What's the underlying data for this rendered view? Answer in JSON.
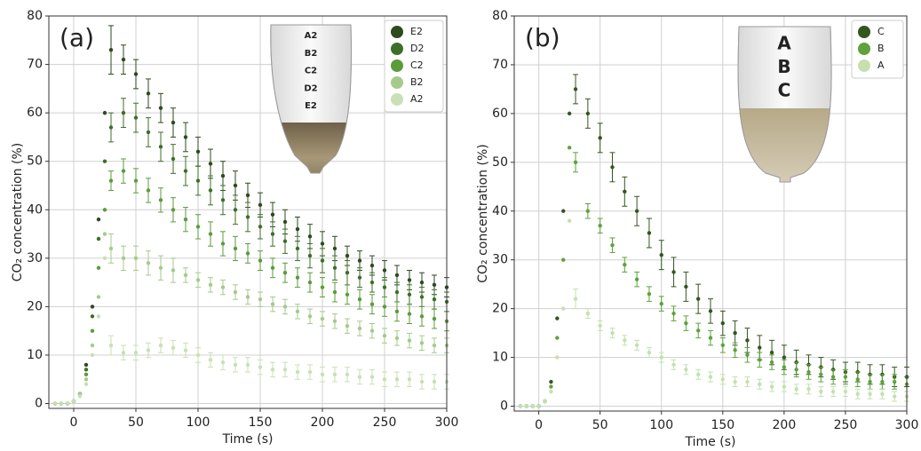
{
  "chart_data": [
    {
      "type": "scatter",
      "panel_label": "(a)",
      "x_label": "Time (s)",
      "y_label": "CO₂ concentration (%)",
      "xlim": [
        -20,
        300
      ],
      "xticks": [
        0,
        50,
        100,
        150,
        200,
        250,
        300
      ],
      "ylim": [
        -1,
        80
      ],
      "yticks": [
        0,
        10,
        20,
        30,
        40,
        50,
        60,
        70,
        80
      ],
      "grid": true,
      "legend": "upper right",
      "glass_labels": [
        "A2",
        "B2",
        "C2",
        "D2",
        "E2"
      ],
      "x": [
        -15,
        -10,
        -5,
        0,
        5,
        10,
        15,
        20,
        25,
        30,
        40,
        50,
        60,
        70,
        80,
        90,
        100,
        110,
        120,
        130,
        140,
        150,
        160,
        170,
        180,
        190,
        200,
        210,
        220,
        230,
        240,
        250,
        260,
        270,
        280,
        290,
        300
      ],
      "series": [
        {
          "name": "E2",
          "color": "#2e4a1f",
          "values": [
            0,
            0,
            0,
            0.5,
            2,
            8,
            20,
            38,
            60,
            73,
            71,
            68,
            64,
            61,
            58,
            55,
            52,
            49.5,
            47,
            45,
            43,
            41,
            39,
            37.5,
            36,
            34.5,
            33,
            32,
            30.5,
            29.5,
            28.5,
            27.5,
            26.5,
            25.5,
            25,
            24.5,
            24
          ],
          "errors": [
            null,
            null,
            null,
            null,
            null,
            null,
            null,
            null,
            null,
            5,
            3,
            3,
            3,
            3,
            3,
            3,
            3,
            3,
            3,
            3,
            2.5,
            2.5,
            2.5,
            2.5,
            2.5,
            2.5,
            2.5,
            2.5,
            2,
            2,
            2,
            2,
            2,
            2,
            2,
            2,
            2
          ]
        },
        {
          "name": "D2",
          "color": "#3f6e2a",
          "values": [
            0,
            0,
            0,
            0.5,
            2,
            7,
            18,
            34,
            50,
            57,
            60,
            59,
            56,
            53,
            50.5,
            48,
            46,
            44,
            42,
            40,
            38.5,
            36.5,
            35,
            33.5,
            32,
            30.5,
            29.5,
            28,
            27,
            26,
            25,
            24,
            23,
            22.5,
            22,
            21.5,
            21
          ],
          "errors": [
            null,
            null,
            null,
            null,
            null,
            null,
            null,
            null,
            null,
            3,
            3,
            3,
            3,
            3,
            3,
            3,
            3,
            3,
            3,
            3,
            3,
            2.5,
            2.5,
            2.5,
            2.5,
            2.5,
            2.5,
            2.5,
            2.5,
            2,
            2,
            2,
            2,
            2,
            2,
            2,
            2
          ]
        },
        {
          "name": "C2",
          "color": "#5c9b3b",
          "values": [
            0,
            0,
            0,
            0.5,
            2,
            6,
            15,
            28,
            40,
            46,
            48,
            46,
            44,
            42,
            40,
            38,
            36.5,
            35,
            33,
            32,
            31,
            29.5,
            28,
            27,
            26,
            25,
            24,
            23,
            22.5,
            21.5,
            20.5,
            20,
            19,
            18.5,
            18,
            17.5,
            17
          ],
          "errors": [
            null,
            null,
            null,
            null,
            null,
            null,
            null,
            null,
            null,
            2,
            2.5,
            2.5,
            2.5,
            2.5,
            2.5,
            2.5,
            2.5,
            2.5,
            2.5,
            2.5,
            2,
            2,
            2,
            2,
            2,
            2,
            2,
            2,
            2,
            2,
            2,
            2,
            2,
            2,
            2,
            2,
            2
          ]
        },
        {
          "name": "B2",
          "color": "#a5ca8c",
          "values": [
            0,
            0,
            0,
            0.5,
            2,
            5,
            12,
            22,
            35,
            32,
            30,
            30,
            29,
            28,
            27.5,
            26.5,
            25.5,
            24.5,
            24,
            23,
            22,
            21.5,
            20.5,
            20,
            19,
            18,
            17.5,
            17,
            16,
            15.5,
            15,
            14,
            13.5,
            13,
            12.5,
            12,
            12
          ],
          "errors": [
            null,
            null,
            null,
            null,
            null,
            null,
            null,
            null,
            null,
            3,
            2.5,
            2.5,
            2.5,
            2.5,
            2.5,
            1.5,
            1.5,
            1.5,
            1.5,
            1.5,
            1.5,
            1.5,
            1.5,
            1.5,
            1.5,
            1.5,
            1.5,
            1.5,
            1.5,
            1.5,
            1.5,
            1.5,
            1.5,
            1.5,
            1.5,
            1.5,
            1.5
          ]
        },
        {
          "name": "A2",
          "color": "#c8e0b5",
          "values": [
            0,
            0,
            0,
            0.5,
            1.5,
            4,
            10,
            18,
            30,
            12,
            10.5,
            10.5,
            11,
            12,
            11.5,
            11,
            10,
            9,
            8.5,
            8,
            8,
            7.5,
            7,
            7,
            6.5,
            6.5,
            6,
            6,
            6,
            5.5,
            5.5,
            5,
            5,
            5,
            4.5,
            4.5,
            4.5
          ],
          "errors": [
            null,
            null,
            null,
            null,
            null,
            null,
            null,
            null,
            null,
            2,
            1.5,
            1.5,
            1.5,
            1.5,
            1.5,
            1.5,
            1.5,
            1.5,
            1.5,
            1.5,
            1.5,
            1.5,
            1.5,
            1.5,
            1.5,
            1.5,
            1.5,
            1.5,
            1.5,
            1.5,
            1.5,
            1.5,
            1.5,
            1.5,
            1.5,
            1.5,
            1.5
          ]
        }
      ]
    },
    {
      "type": "scatter",
      "panel_label": "(b)",
      "x_label": "Time (s)",
      "y_label": "CO₂ concentration (%)",
      "xlim": [
        -20,
        300
      ],
      "xticks": [
        0,
        50,
        100,
        150,
        200,
        250,
        300
      ],
      "ylim": [
        -1,
        80
      ],
      "yticks": [
        0,
        10,
        20,
        30,
        40,
        50,
        60,
        70,
        80
      ],
      "grid": true,
      "legend": "upper right",
      "glass_labels": [
        "A",
        "B",
        "C"
      ],
      "x": [
        -15,
        -10,
        -5,
        0,
        5,
        10,
        15,
        20,
        25,
        30,
        40,
        50,
        60,
        70,
        80,
        90,
        100,
        110,
        120,
        130,
        140,
        150,
        160,
        170,
        180,
        190,
        200,
        210,
        220,
        230,
        240,
        250,
        260,
        270,
        280,
        290,
        300
      ],
      "series": [
        {
          "name": "C",
          "color": "#34561f",
          "values": [
            0,
            0,
            0,
            0,
            1,
            5,
            18,
            40,
            60,
            65,
            60,
            55,
            49,
            44,
            40,
            35.5,
            31,
            27.5,
            24.5,
            22,
            19.5,
            17,
            15,
            13.5,
            12,
            11,
            10,
            9,
            8.5,
            8,
            7.5,
            7,
            7,
            6.5,
            6.5,
            6,
            6
          ],
          "errors": [
            null,
            null,
            null,
            null,
            null,
            null,
            null,
            null,
            null,
            3,
            3,
            3,
            3,
            3,
            3,
            3,
            3,
            3,
            3,
            3,
            2.5,
            2.5,
            2.5,
            2.5,
            2.5,
            2.5,
            2.5,
            2.5,
            2,
            2,
            2,
            2,
            2,
            2,
            2,
            2,
            2
          ]
        },
        {
          "name": "B",
          "color": "#5ea23a",
          "values": [
            0,
            0,
            0,
            0,
            1,
            4,
            14,
            30,
            53,
            50,
            40,
            37,
            33,
            29,
            26,
            23,
            21,
            19,
            17,
            15.5,
            14,
            12.5,
            11.5,
            10.5,
            9.5,
            9,
            8,
            7.5,
            7,
            6.5,
            6,
            6,
            5.5,
            5,
            5,
            5,
            4.5
          ],
          "errors": [
            null,
            null,
            null,
            null,
            null,
            null,
            null,
            null,
            null,
            2,
            1.5,
            1.5,
            1.5,
            1.5,
            1.5,
            1.5,
            1.5,
            1.5,
            1.5,
            1.5,
            1.5,
            1.5,
            1.5,
            1.5,
            1.5,
            1.5,
            1.5,
            1.5,
            1.5,
            1.5,
            1.5,
            1.5,
            1.5,
            1.5,
            1.5,
            1.5,
            1.5
          ]
        },
        {
          "name": "A",
          "color": "#c5e0b0",
          "values": [
            0,
            0,
            0,
            0,
            1,
            3,
            10,
            20,
            38,
            22,
            19,
            16.5,
            15,
            13.5,
            12.5,
            11,
            10,
            8.5,
            7.5,
            6.5,
            6,
            5.5,
            5,
            5,
            4.5,
            4,
            4,
            3.5,
            3.5,
            3,
            3,
            3,
            2.5,
            2.5,
            2.5,
            2,
            2
          ],
          "errors": [
            null,
            null,
            null,
            null,
            null,
            null,
            null,
            null,
            null,
            2,
            1,
            1,
            1,
            1,
            1,
            1,
            1,
            1,
            1,
            1,
            1,
            1,
            1,
            1,
            1,
            1,
            1,
            1,
            1,
            1,
            1,
            1,
            1,
            1,
            1,
            1,
            1
          ]
        }
      ]
    }
  ]
}
